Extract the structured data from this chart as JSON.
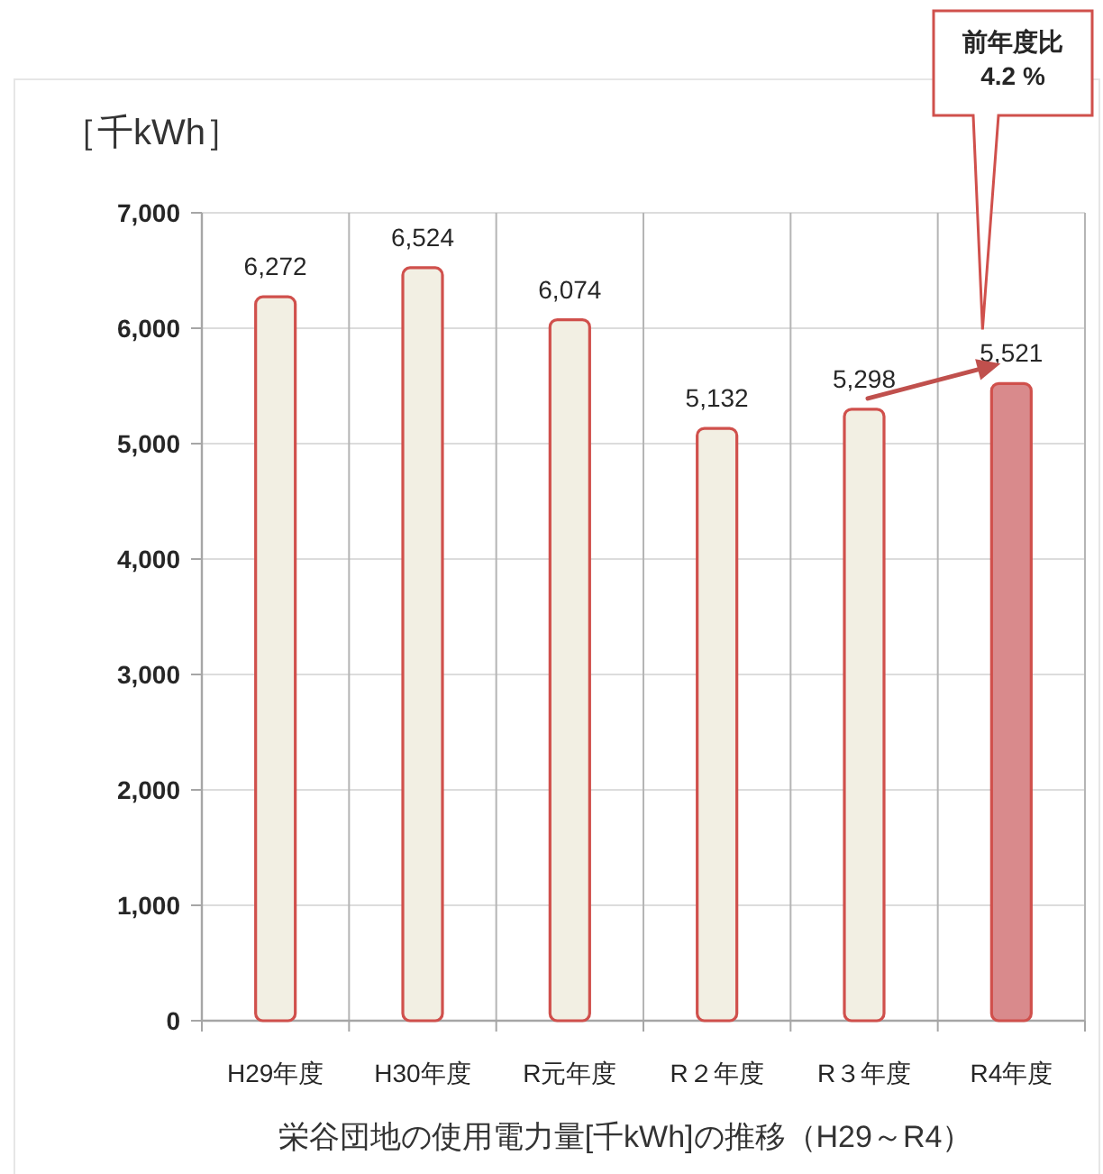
{
  "chart_data": {
    "type": "bar",
    "title": "栄谷団地の使用電力量[千kWh]の推移（H29～R4）",
    "ylabel": "［千kWh］",
    "categories": [
      "H29年度",
      "H30年度",
      "R元年度",
      "R２年度",
      "R３年度",
      "R4年度"
    ],
    "values": [
      6272,
      6524,
      6074,
      5132,
      5298,
      5521
    ],
    "value_labels": [
      "6,272",
      "6,524",
      "6,074",
      "5,132",
      "5,298",
      "5,521"
    ],
    "colors": [
      "#f2efe3",
      "#f2efe3",
      "#f2efe3",
      "#f2efe3",
      "#f2efe3",
      "#d98a8c"
    ],
    "ylim": [
      0,
      7000
    ],
    "yticks": [
      0,
      {
        "value": 1000,
        "label": "1,000"
      },
      {
        "value": 2000,
        "label": "2,000"
      },
      {
        "value": 3000,
        "label": "3,000"
      },
      {
        "value": 4000,
        "label": "4,000"
      },
      {
        "value": 5000,
        "label": "5,000"
      },
      {
        "value": 6000,
        "label": "6,000"
      },
      {
        "value": 7000,
        "label": "7,000"
      }
    ],
    "grid": true,
    "annotations": [
      "前年度比\n4.2 %"
    ]
  }
}
